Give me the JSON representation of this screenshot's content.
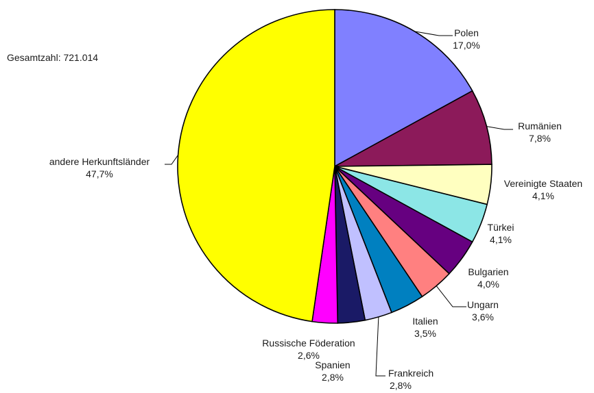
{
  "chart_data": {
    "type": "pie",
    "total_label": "Gesamtzahl: 721.014",
    "slices": [
      {
        "name": "Polen",
        "value": 17.0,
        "label": "17,0%",
        "color": "#8080ff"
      },
      {
        "name": "Rumänien",
        "value": 7.8,
        "label": "7,8%",
        "color": "#8c1a5a"
      },
      {
        "name": "Vereinigte Staaten",
        "value": 4.1,
        "label": "4,1%",
        "color": "#ffffc0"
      },
      {
        "name": "Türkei",
        "value": 4.1,
        "label": "4,1%",
        "color": "#8ce6e6"
      },
      {
        "name": "Bulgarien",
        "value": 4.0,
        "label": "4,0%",
        "color": "#660080"
      },
      {
        "name": "Ungarn",
        "value": 3.6,
        "label": "3,6%",
        "color": "#ff8080"
      },
      {
        "name": "Italien",
        "value": 3.5,
        "label": "3,5%",
        "color": "#0080c0"
      },
      {
        "name": "Frankreich",
        "value": 2.8,
        "label": "2,8%",
        "color": "#c0c0ff"
      },
      {
        "name": "Spanien",
        "value": 2.8,
        "label": "2,8%",
        "color": "#1a1a66"
      },
      {
        "name": "Russische Föderation",
        "value": 2.6,
        "label": "2,6%",
        "color": "#ff00ff"
      },
      {
        "name": "andere Herkunftsländer",
        "value": 47.7,
        "label": "47,7%",
        "color": "#ffff00"
      }
    ]
  }
}
